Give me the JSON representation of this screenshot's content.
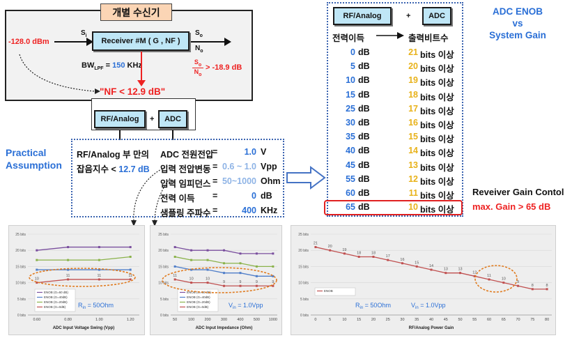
{
  "receiver": {
    "title": "개별 수신기",
    "input_level": "-128.0 dBm",
    "si": "S",
    "si_sub": "i",
    "block": "Receiver  #M ( G , NF )",
    "so": "S",
    "so_sub": "o",
    "no": "N",
    "no_sub": "o",
    "bw_label": "BW",
    "bw_sub": "LPF",
    "bw_eq": " = ",
    "bw_value": "150",
    "bw_unit": " KHz",
    "snr_num": "S",
    "snr_num_sub": "o",
    "snr_den": "N",
    "snr_den_sub": "o",
    "snr_value": "> -18.9 dB"
  },
  "nf_result": "\"NF < 12.9 dB\"",
  "chain": {
    "rf": "RF/Analog",
    "plus": "+",
    "adc": "ADC"
  },
  "assumption": {
    "heading1": "Practical",
    "heading2": "Assumption",
    "left1": "RF/Analog 부 만의",
    "left2_a": "잡음지수 < ",
    "left2_b": "12.7 dB",
    "params": [
      {
        "label": "ADC 전원전압",
        "eq": "=",
        "value": "1.0",
        "unit": "V"
      },
      {
        "label": "입력 전압변동",
        "eq": "=",
        "value": "0.6 ~ 1.0",
        "unit": "Vpp"
      },
      {
        "label": "입력 임피던스",
        "eq": "=",
        "value": "50~1000",
        "unit": "Ohm"
      },
      {
        "label": "전력 이득",
        "eq": "=",
        "value": "0",
        "unit": "dB"
      },
      {
        "label": "샘플링 주파수",
        "eq": "=",
        "value": "400",
        "unit": "KHz"
      }
    ]
  },
  "table": {
    "rf": "RF/Analog",
    "plus": "+",
    "adc": "ADC",
    "col1": "전력이득",
    "col2": "출력비트수",
    "rows": [
      {
        "gain": "0",
        "db": "dB",
        "bits": "21",
        "suffix": "bits 이상"
      },
      {
        "gain": "5",
        "db": "dB",
        "bits": "20",
        "suffix": "bits 이상"
      },
      {
        "gain": "10",
        "db": "dB",
        "bits": "19",
        "suffix": "bits 이상"
      },
      {
        "gain": "15",
        "db": "dB",
        "bits": "18",
        "suffix": "bits 이상"
      },
      {
        "gain": "25",
        "db": "dB",
        "bits": "17",
        "suffix": "bits 이상"
      },
      {
        "gain": "30",
        "db": "dB",
        "bits": "16",
        "suffix": "bits 이상"
      },
      {
        "gain": "35",
        "db": "dB",
        "bits": "15",
        "suffix": "bits 이상"
      },
      {
        "gain": "40",
        "db": "dB",
        "bits": "14",
        "suffix": "bits 이상"
      },
      {
        "gain": "45",
        "db": "dB",
        "bits": "13",
        "suffix": "bits 이상"
      },
      {
        "gain": "55",
        "db": "dB",
        "bits": "12",
        "suffix": "bits 이상"
      },
      {
        "gain": "60",
        "db": "dB",
        "bits": "11",
        "suffix": "bits 이상"
      },
      {
        "gain": "65",
        "db": "dB",
        "bits": "10",
        "suffix": "bits 이상"
      }
    ]
  },
  "adc_title": {
    "l1": "ADC ENOB",
    "l2": "vs",
    "l3": "System Gain"
  },
  "gain_control": {
    "l1": "Reveiver Gain Contol",
    "l2": "max. Gain > 65 dB"
  },
  "chart_data": [
    {
      "type": "line",
      "x": [
        0.6,
        0.8,
        1.0,
        1.2
      ],
      "x_ticks": [
        "0.60",
        "0.80",
        "1.00",
        "1.20"
      ],
      "ylim": [
        0,
        25
      ],
      "y_ticks": [
        "0 bits",
        "5 bits",
        "10 bits",
        "15 bits",
        "20 bits",
        "25 bits"
      ],
      "series": [
        {
          "name": "ENOB (G=60 dB)",
          "values": [
            20,
            21,
            21,
            21
          ],
          "color": "#7a4f9e"
        },
        {
          "name": "ENOB (G=40dB)",
          "values": [
            14,
            14,
            14,
            14
          ],
          "color": "#4f7ec9"
        },
        {
          "name": "ENOB (G=20dB)",
          "values": [
            17,
            17,
            17,
            18
          ],
          "color": "#8ab24a"
        },
        {
          "name": "ENOB (G=0dB)",
          "values": [
            10,
            11,
            11,
            11
          ],
          "color": "#c05050"
        }
      ],
      "labels": [
        "10",
        "11",
        "11",
        "11"
      ],
      "xlabel": "ADC  Input  Voltage Swing (Vpp)",
      "annotation_a": "R",
      "annotation_sub": "in",
      "annotation_b": " =  50Ohm"
    },
    {
      "type": "line",
      "x": [
        50,
        100,
        200,
        300,
        400,
        500,
        1000
      ],
      "x_ticks": [
        "50",
        "100",
        "200",
        "300",
        "400",
        "500",
        "1000"
      ],
      "ylim": [
        0,
        25
      ],
      "y_ticks": [
        "0 bits",
        "5 bits",
        "10 bits",
        "15 bits",
        "20 bits",
        "25 bits"
      ],
      "series": [
        {
          "name": "ENOB (G=60 dB)",
          "values": [
            21,
            20,
            20,
            20,
            19,
            19,
            19
          ],
          "color": "#7a4f9e"
        },
        {
          "name": "ENOB (G=40dB)",
          "values": [
            15,
            14,
            14,
            13,
            13,
            12,
            12
          ],
          "color": "#4f7ec9"
        },
        {
          "name": "ENOB (G=20dB)",
          "values": [
            18,
            17,
            17,
            16,
            16,
            15,
            15
          ],
          "color": "#8ab24a"
        },
        {
          "name": "ENOB (G=0dB)",
          "values": [
            11,
            10,
            10,
            9,
            9,
            9,
            9
          ],
          "color": "#c05050"
        }
      ],
      "labels": [
        "11",
        "10",
        "10",
        "9",
        "9",
        "9",
        "9"
      ],
      "xlabel": "ADC  Input  Impedance (Ohm)",
      "annotation_a": "V",
      "annotation_sub": "in",
      "annotation_b": " = 1.0Vpp"
    },
    {
      "type": "line",
      "x": [
        0,
        5,
        10,
        15,
        20,
        25,
        30,
        35,
        40,
        45,
        50,
        55,
        60,
        65,
        70,
        75,
        80
      ],
      "x_ticks": [
        "0",
        "5",
        "10",
        "15",
        "20",
        "25",
        "30",
        "35",
        "40",
        "45",
        "50",
        "55",
        "60",
        "65",
        "70",
        "75",
        "80"
      ],
      "ylim": [
        0,
        25
      ],
      "y_ticks": [
        "0 bits",
        "5 bits",
        "10 bits",
        "15 bits",
        "20 bits",
        "25 bits"
      ],
      "series": [
        {
          "name": "ENOB",
          "values": [
            21,
            20,
            19,
            18,
            18,
            17,
            16,
            15,
            14,
            13,
            13,
            12,
            11,
            10,
            9,
            8,
            8
          ],
          "color": "#c05050"
        }
      ],
      "labels": [
        "21",
        "20",
        "19",
        "18",
        "18",
        "17",
        "16",
        "15",
        "14",
        "13",
        "13",
        "12",
        "11",
        "10",
        "9",
        "8",
        "8"
      ],
      "xlabel": "RF/Analog  Power Gain",
      "annotation_a": "R",
      "annotation_sub": "in",
      "annotation_b": " = 50Ohm",
      "annotation2_a": "V",
      "annotation2_sub": "in",
      "annotation2_b": " = 1.0Vpp"
    }
  ]
}
